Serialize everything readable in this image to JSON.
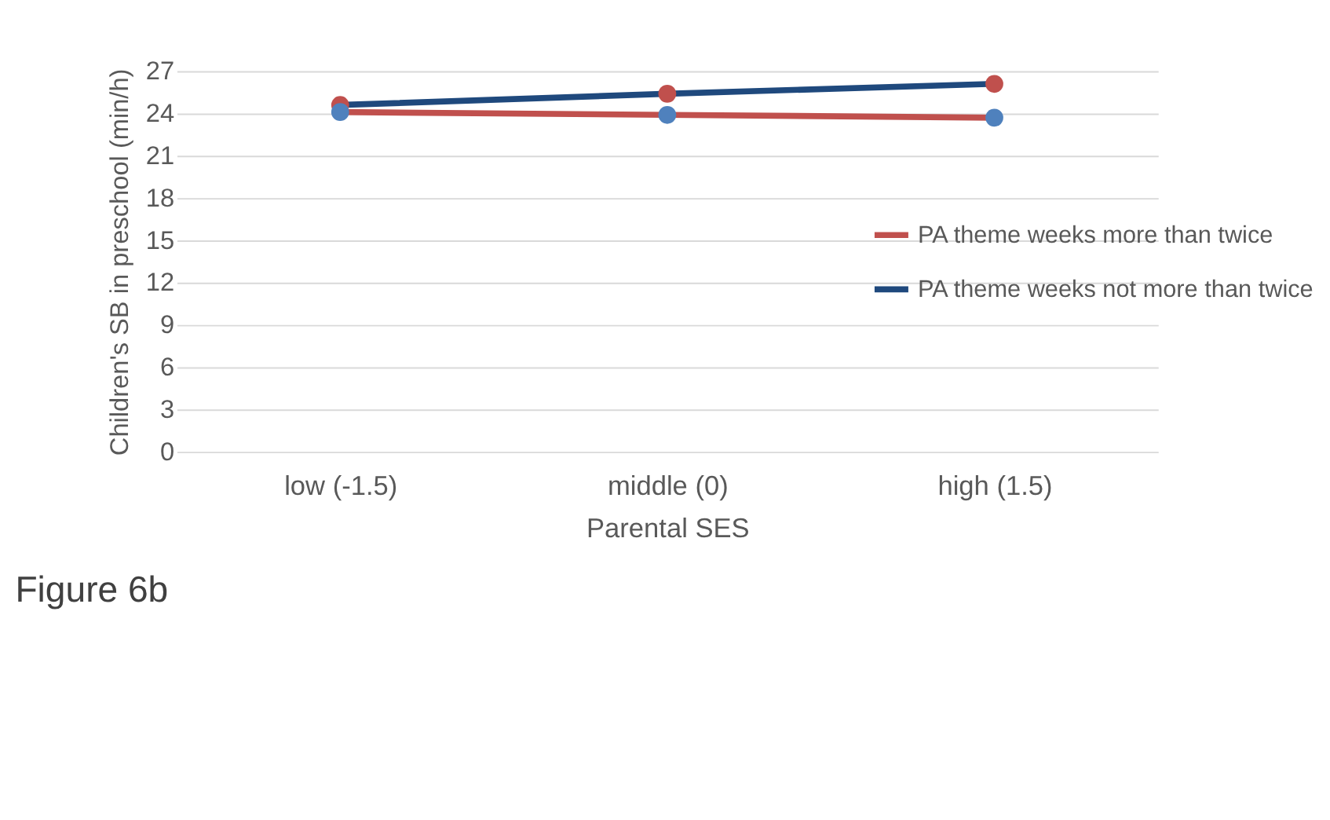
{
  "chart_data": {
    "type": "line",
    "xlabel": "Parental SES",
    "ylabel": "Children's SB in preschool (min/h)",
    "categories": [
      "low (-1.5)",
      "middle (0)",
      "high (1.5)"
    ],
    "series": [
      {
        "name": "PA theme weeks more than twice",
        "color": "#c0504d",
        "colors": [
          "#4f81bd",
          "#4f81bd",
          "#4f81bd"
        ],
        "values": [
          24.1,
          23.9,
          23.7
        ]
      },
      {
        "name": "PA theme weeks not more than twice",
        "color": "#1f497d",
        "colors": [
          "#c0504d",
          "#c0504d",
          "#c0504d"
        ],
        "values": [
          24.6,
          25.4,
          26.1
        ]
      }
    ],
    "ylim": [
      0,
      27
    ],
    "yticks": [
      0,
      3,
      6,
      9,
      12,
      15,
      18,
      21,
      24,
      27
    ],
    "grid": "y",
    "legend": "right",
    "marker": "circle",
    "line_style": "solid",
    "annotations": [
      "Figure 6b"
    ]
  }
}
